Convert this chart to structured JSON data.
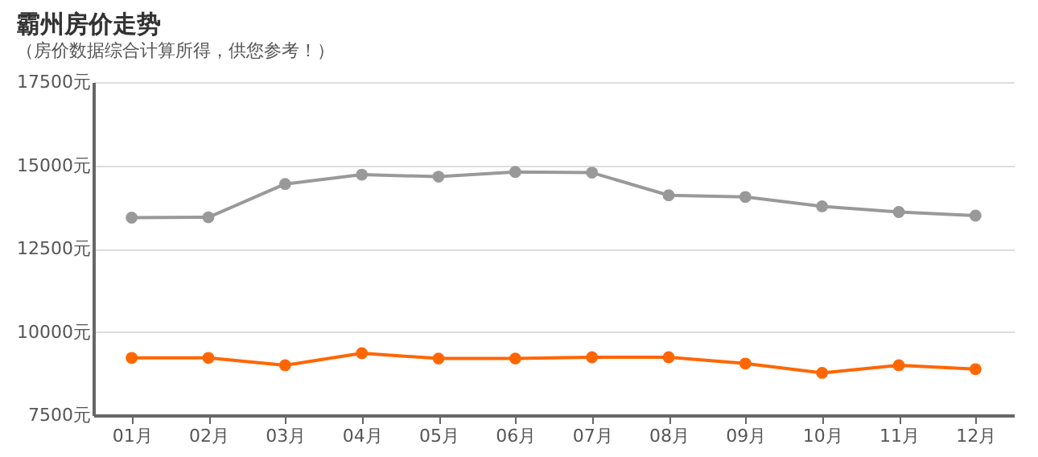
{
  "chart_data": {
    "type": "line",
    "title": "霸州房价走势",
    "subtitle": "（房价数据综合计算所得，供您参考！）",
    "categories": [
      "01月",
      "02月",
      "03月",
      "04月",
      "05月",
      "06月",
      "07月",
      "08月",
      "09月",
      "10月",
      "11月",
      "12月"
    ],
    "series": [
      {
        "color": "#999999",
        "values": [
          13430,
          13440,
          14440,
          14720,
          14660,
          14800,
          14780,
          14100,
          14050,
          13770,
          13600,
          13490
        ]
      },
      {
        "color": "#ff6600",
        "values": [
          9220,
          9220,
          9000,
          9360,
          9200,
          9200,
          9240,
          9240,
          9050,
          8770,
          9000,
          8880
        ]
      }
    ],
    "ylim": [
      7500,
      17500
    ],
    "yticks": [
      {
        "value": 7500,
        "label": "7500元"
      },
      {
        "value": 10000,
        "label": "10000元"
      },
      {
        "value": 12500,
        "label": "12500元"
      },
      {
        "value": 15000,
        "label": "15000元"
      },
      {
        "value": 17500,
        "label": "17500元"
      }
    ],
    "grid": "y",
    "marker": "circle",
    "line_style": "solid"
  }
}
